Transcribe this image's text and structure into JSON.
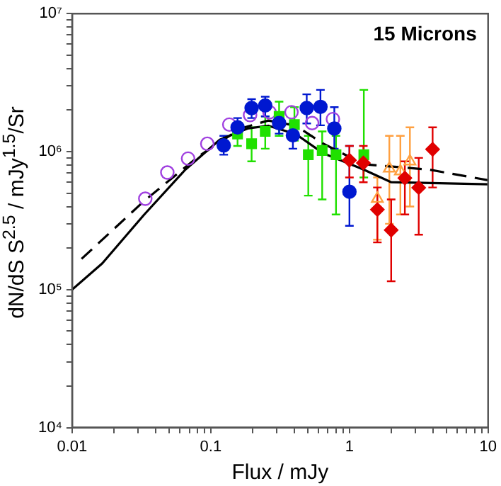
{
  "chart_data": {
    "type": "scatter",
    "xlabel": "Flux / mJy",
    "ylabel": "dN/dS S$^{2.5}$ / mJy$^{1.5}$/Sr",
    "log": "xy",
    "grid": false,
    "legend": false,
    "annotations": [
      "15 Microns"
    ],
    "xlim": [
      0.01,
      10
    ],
    "ylim": [
      10000,
      10000000
    ],
    "xticks": [
      0.01,
      {
        "value": 0.02,
        "label": null
      },
      {
        "value": 0.03,
        "label": null
      },
      {
        "value": 0.04,
        "label": null
      },
      {
        "value": 0.05,
        "label": null
      },
      {
        "value": 0.06,
        "label": null
      },
      {
        "value": 0.07,
        "label": null
      },
      {
        "value": 0.08,
        "label": null
      },
      {
        "value": 0.09,
        "label": null
      },
      0.1,
      {
        "value": 0.2,
        "label": null
      },
      {
        "value": 0.3,
        "label": null
      },
      {
        "value": 0.4,
        "label": null
      },
      {
        "value": 0.5,
        "label": null
      },
      {
        "value": 0.6,
        "label": null
      },
      {
        "value": 0.7,
        "label": null
      },
      {
        "value": 0.8,
        "label": null
      },
      {
        "value": 0.9,
        "label": null
      },
      1,
      {
        "value": 2,
        "label": null
      },
      {
        "value": 3,
        "label": null
      },
      {
        "value": 4,
        "label": null
      },
      {
        "value": 5,
        "label": null
      },
      {
        "value": 6,
        "label": null
      },
      {
        "value": 7,
        "label": null
      },
      {
        "value": 8,
        "label": null
      },
      {
        "value": 9,
        "label": null
      },
      10
    ],
    "yticks": [
      {
        "value": 10000,
        "label": "10⁴"
      },
      {
        "value": 20000,
        "label": null
      },
      {
        "value": 30000,
        "label": null
      },
      {
        "value": 40000,
        "label": null
      },
      {
        "value": 50000,
        "label": null
      },
      {
        "value": 60000,
        "label": null
      },
      {
        "value": 70000,
        "label": null
      },
      {
        "value": 80000,
        "label": null
      },
      {
        "value": 90000,
        "label": null
      },
      {
        "value": 100000,
        "label": "10⁵"
      },
      {
        "value": 200000,
        "label": null
      },
      {
        "value": 300000,
        "label": null
      },
      {
        "value": 400000,
        "label": null
      },
      {
        "value": 500000,
        "label": null
      },
      {
        "value": 600000,
        "label": null
      },
      {
        "value": 700000,
        "label": null
      },
      {
        "value": 800000,
        "label": null
      },
      {
        "value": 900000,
        "label": null
      },
      {
        "value": 1000000,
        "label": "10⁶"
      },
      {
        "value": 2000000,
        "label": null
      },
      {
        "value": 3000000,
        "label": null
      },
      {
        "value": 4000000,
        "label": null
      },
      {
        "value": 5000000,
        "label": null
      },
      {
        "value": 6000000,
        "label": null
      },
      {
        "value": 7000000,
        "label": null
      },
      {
        "value": 8000000,
        "label": null
      },
      {
        "value": 9000000,
        "label": null
      },
      {
        "value": 10000000,
        "label": "10⁷"
      }
    ],
    "series": [
      {
        "type": "line",
        "color": "#000000",
        "marker": "none",
        "line_style": "solid",
        "x": [
          0.01,
          0.0165,
          0.0329,
          0.0655,
          0.116,
          0.184,
          0.26,
          0.41,
          0.65,
          1.27,
          2.0,
          10
        ],
        "values": [
          100000,
          155000,
          347000,
          740000,
          1220000,
          1470000,
          1540000,
          1340000,
          970000,
          740000,
          600000,
          580000
        ]
      },
      {
        "type": "line",
        "color": "#000000",
        "marker": "none",
        "line_style": "dashed",
        "x": [
          0.0117,
          0.0329,
          0.0823,
          0.164,
          0.26,
          0.41,
          0.65,
          1.27,
          3.78,
          10
        ],
        "values": [
          167000,
          437000,
          930000,
          1470000,
          1680000,
          1540000,
          1140000,
          810000,
          740000,
          620000
        ]
      },
      {
        "color": "#a040e0",
        "marker": "circle",
        "x": [
          0.0337,
          0.0486,
          0.0686,
          0.0944,
          0.136,
          0.192,
          0.265,
          0.382,
          0.538,
          0.76
        ],
        "values": [
          456000,
          705000,
          890000,
          1140000,
          1570000,
          1840000,
          1930000,
          1930000,
          1610000,
          1720000
        ]
      },
      {
        "color": "#ffa040",
        "marker": "triangle",
        "x": [
          1.59,
          1.94,
          2.33,
          2.73
        ],
        "values": [
          456000,
          755000,
          720000,
          850000
        ],
        "errors": [
          [
            230000,
            650000
          ],
          [
            300000,
            1300000
          ],
          [
            350000,
            1300000
          ],
          [
            400000,
            1500000
          ]
        ]
      },
      {
        "color": "#20e000",
        "marker": "square",
        "x": [
          0.156,
          0.197,
          0.247,
          0.311,
          0.401,
          0.505,
          0.636,
          0.8,
          1.27
        ],
        "values": [
          1340000,
          1140000,
          1400000,
          1800000,
          1570000,
          950000,
          1020000,
          950000,
          950000
        ],
        "errors": [
          [
            1100000,
            1600000
          ],
          [
            850000,
            1500000
          ],
          [
            1050000,
            1800000
          ],
          [
            1300000,
            2300000
          ],
          [
            1200000,
            2100000
          ],
          [
            480000,
            1300000
          ],
          [
            450000,
            1400000
          ],
          [
            350000,
            1300000
          ],
          [
            650000,
            2800000
          ]
        ]
      },
      {
        "color": "#0018d0",
        "marker": "circle",
        "x": [
          0.124,
          0.156,
          0.197,
          0.247,
          0.311,
          0.391,
          0.492,
          0.618,
          0.778,
          1.0
        ],
        "values": [
          1110000,
          1500000,
          2070000,
          2160000,
          1610000,
          1310000,
          2070000,
          2110000,
          1470000,
          512000
        ],
        "errors": [
          [
            950000,
            1300000
          ],
          [
            1300000,
            1750000
          ],
          [
            1750000,
            2400000
          ],
          [
            1800000,
            2500000
          ],
          [
            1350000,
            1900000
          ],
          [
            1050000,
            1600000
          ],
          [
            1600000,
            2600000
          ],
          [
            1550000,
            2800000
          ],
          [
            1050000,
            2100000
          ],
          [
            290000,
            1100000
          ]
        ]
      },
      {
        "color": "#e00000",
        "marker": "diamond",
        "x": [
          1.0,
          1.26,
          1.59,
          2.0,
          2.51,
          3.16,
          3.98
        ],
        "values": [
          866000,
          827000,
          380000,
          270000,
          643000,
          548000,
          1040000
        ],
        "errors": [
          [
            650000,
            1100000
          ],
          [
            600000,
            1100000
          ],
          [
            220000,
            550000
          ],
          [
            115000,
            450000
          ],
          [
            350000,
            850000
          ],
          [
            250000,
            900000
          ],
          [
            550000,
            1500000
          ]
        ]
      }
    ]
  }
}
